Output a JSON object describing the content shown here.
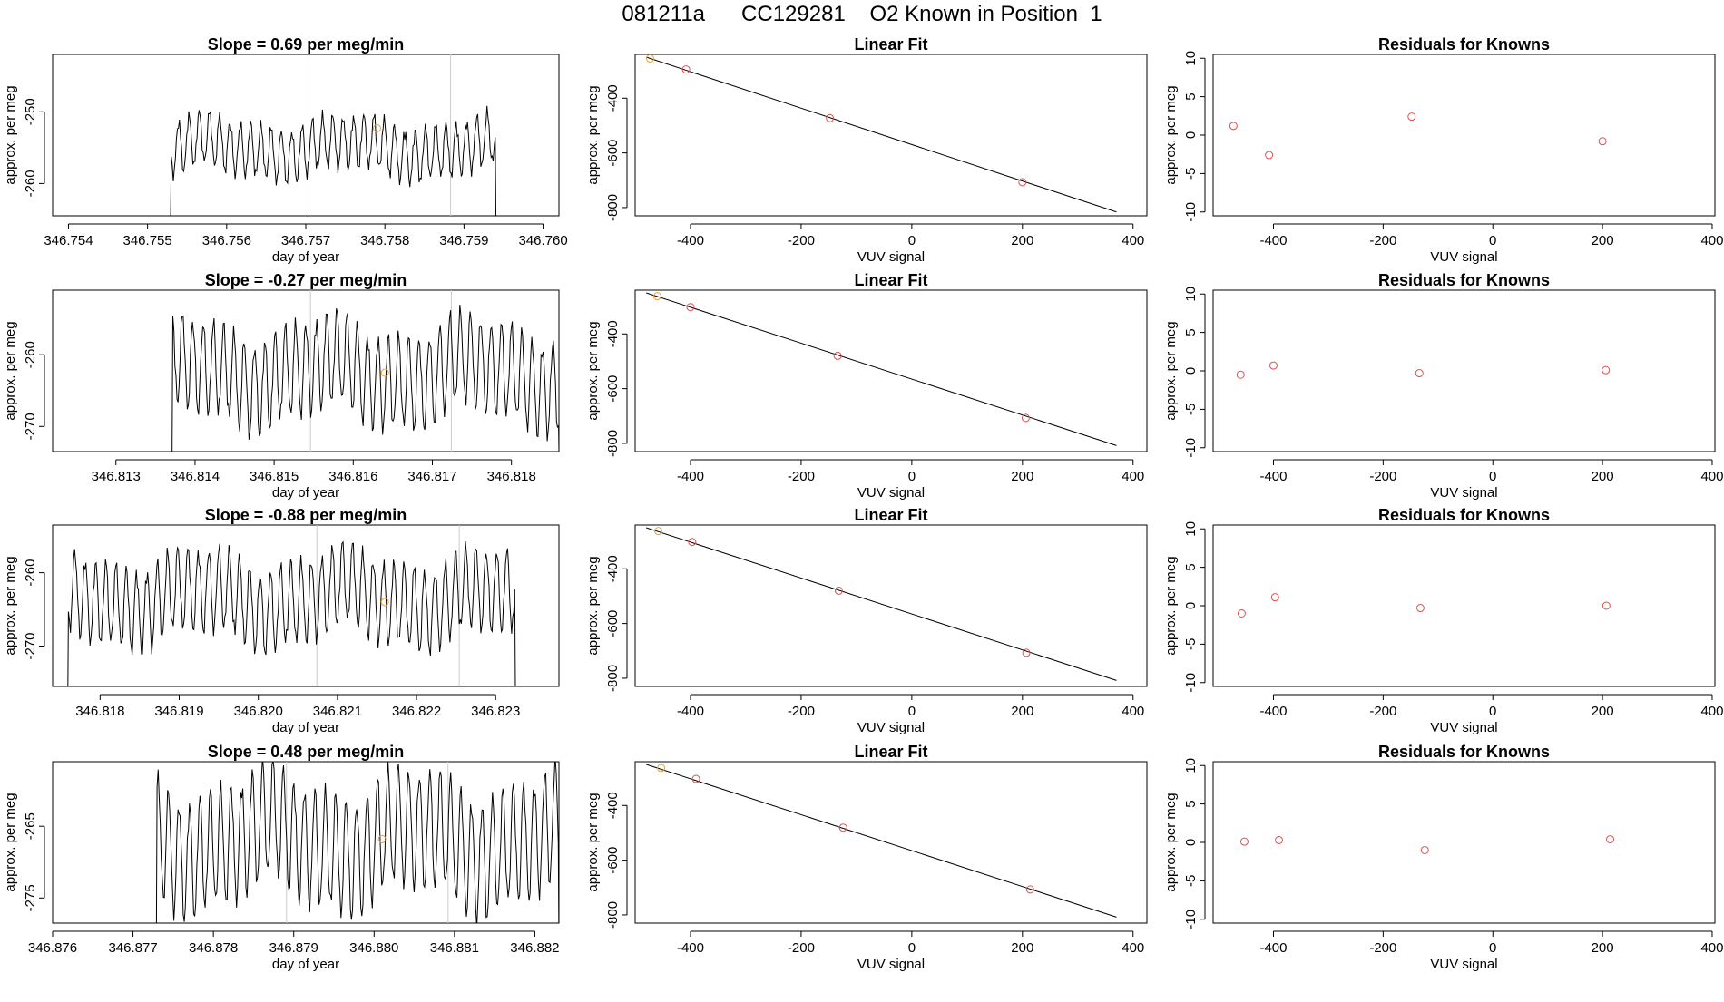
{
  "figure": {
    "title": "081211a      CC129281    O2 Known in Position  1"
  },
  "colors": {
    "ink": "#000000",
    "known_point": "#d9534f",
    "highlight_point": "#e8a33d",
    "vline": "#cccccc"
  },
  "chart_data": [
    {
      "type": "line",
      "panel": "time-series-1",
      "title": "Slope =  0.69  per meg/min",
      "xlabel": "day of year",
      "ylabel": "approx. per meg",
      "xlim": [
        346.7538,
        346.7602
      ],
      "ylim": [
        -264.5,
        -242
      ],
      "xticks": [
        "346.754",
        "346.755",
        "346.756",
        "346.757",
        "346.758",
        "346.759",
        "346.760"
      ],
      "yticks": [
        "-250",
        "-260"
      ],
      "vlines": [
        346.75704,
        346.75883
      ],
      "highlight": {
        "x": 346.7579,
        "y": -252.3
      },
      "signal": {
        "start": 346.7551,
        "end": 346.75956,
        "base": -255,
        "amp": 4.3,
        "period": 0.00013,
        "drop_in": 346.7553,
        "drop_out": 346.7594,
        "floor": -270
      }
    },
    {
      "type": "line",
      "panel": "time-series-2",
      "title": "Slope =  -0.27  per meg/min",
      "xlabel": "day of year",
      "ylabel": "approx. per meg",
      "xlim": [
        346.8122,
        346.8186
      ],
      "ylim": [
        -273.5,
        -251
      ],
      "xticks": [
        "346.813",
        "346.814",
        "346.815",
        "346.816",
        "346.817",
        "346.818"
      ],
      "yticks": [
        "-260",
        "-270"
      ],
      "vlines": [
        346.81546,
        346.81724
      ],
      "highlight": {
        "x": 346.8164,
        "y": -262.5
      },
      "signal": {
        "start": 346.81355,
        "end": 346.81842,
        "base": -262.5,
        "amp": 7.5,
        "period": 0.00013,
        "drop_in": 346.81372,
        "drop_out": 346.8186,
        "floor": -280
      }
    },
    {
      "type": "line",
      "panel": "time-series-3",
      "title": "Slope =  -0.88  per meg/min",
      "xlabel": "day of year",
      "ylabel": "approx. per meg",
      "xlim": [
        346.8174,
        346.8238
      ],
      "ylim": [
        -275.5,
        -253.5
      ],
      "xticks": [
        "346.818",
        "346.819",
        "346.820",
        "346.821",
        "346.822",
        "346.823"
      ],
      "yticks": [
        "-260",
        "-270"
      ],
      "vlines": [
        346.82074,
        346.82254
      ],
      "highlight": {
        "x": 346.8216,
        "y": -264
      },
      "signal": {
        "start": 346.81765,
        "end": 346.82333,
        "base": -263.5,
        "amp": 6.5,
        "period": 0.00013,
        "drop_in": 346.8176,
        "drop_out": 346.82325,
        "floor": -285
      }
    },
    {
      "type": "line",
      "panel": "time-series-4",
      "title": "Slope =  0.48  per meg/min",
      "xlabel": "day of year",
      "ylabel": "approx. per meg",
      "xlim": [
        346.876,
        346.8823
      ],
      "ylim": [
        -278.5,
        -256
      ],
      "xticks": [
        "346.876",
        "346.877",
        "346.878",
        "346.879",
        "346.880",
        "346.881",
        "346.882"
      ],
      "yticks": [
        "-265",
        "-275"
      ],
      "vlines": [
        346.87891,
        346.88092
      ],
      "highlight": {
        "x": 346.8801,
        "y": -266.8
      },
      "signal": {
        "start": 346.87715,
        "end": 346.88212,
        "base": -267,
        "amp": 9.5,
        "period": 0.00013,
        "drop_in": 346.8773,
        "drop_out": 346.8823,
        "floor": -290
      }
    },
    {
      "type": "scatter",
      "panel": "linear-fit-1",
      "title": "Linear Fit",
      "xlabel": "VUV signal",
      "ylabel": "approx. per meg",
      "xlim": [
        -500,
        425
      ],
      "ylim": [
        -830,
        -240
      ],
      "xticks": [
        "-400",
        "-200",
        "0",
        "200",
        "400"
      ],
      "yticks": [
        "-400",
        "-600",
        "-800"
      ],
      "points": [
        {
          "x": -473,
          "y": -255,
          "highlight": true
        },
        {
          "x": -408,
          "y": -295
        },
        {
          "x": -148,
          "y": -473
        },
        {
          "x": 200,
          "y": -707
        }
      ],
      "fit_line": [
        [
          -480,
          -250
        ],
        [
          370,
          -816
        ]
      ]
    },
    {
      "type": "scatter",
      "panel": "linear-fit-2",
      "title": "Linear Fit",
      "xlabel": "VUV signal",
      "ylabel": "approx. per meg",
      "xlim": [
        -500,
        425
      ],
      "ylim": [
        -830,
        -240
      ],
      "xticks": [
        "-400",
        "-200",
        "0",
        "200",
        "400"
      ],
      "yticks": [
        "-400",
        "-600",
        "-800"
      ],
      "points": [
        {
          "x": -460,
          "y": -262,
          "highlight": true
        },
        {
          "x": -400,
          "y": -302
        },
        {
          "x": -134,
          "y": -480
        },
        {
          "x": 206,
          "y": -707
        }
      ],
      "fit_line": [
        [
          -480,
          -250
        ],
        [
          370,
          -808
        ]
      ]
    },
    {
      "type": "scatter",
      "panel": "linear-fit-3",
      "title": "Linear Fit",
      "xlabel": "VUV signal",
      "ylabel": "approx. per meg",
      "xlim": [
        -500,
        425
      ],
      "ylim": [
        -830,
        -240
      ],
      "xticks": [
        "-400",
        "-200",
        "0",
        "200",
        "400"
      ],
      "yticks": [
        "-400",
        "-600",
        "-800"
      ],
      "points": [
        {
          "x": -458,
          "y": -262,
          "highlight": true
        },
        {
          "x": -397,
          "y": -302
        },
        {
          "x": -132,
          "y": -480
        },
        {
          "x": 207,
          "y": -707
        }
      ],
      "fit_line": [
        [
          -480,
          -250
        ],
        [
          370,
          -808
        ]
      ]
    },
    {
      "type": "scatter",
      "panel": "linear-fit-4",
      "title": "Linear Fit",
      "xlabel": "VUV signal",
      "ylabel": "approx. per meg",
      "xlim": [
        -500,
        425
      ],
      "ylim": [
        -830,
        -240
      ],
      "xticks": [
        "-400",
        "-200",
        "0",
        "200",
        "400"
      ],
      "yticks": [
        "-400",
        "-600",
        "-800"
      ],
      "points": [
        {
          "x": -453,
          "y": -263,
          "highlight": true
        },
        {
          "x": -390,
          "y": -303
        },
        {
          "x": -124,
          "y": -481
        },
        {
          "x": 214,
          "y": -707
        }
      ],
      "fit_line": [
        [
          -480,
          -250
        ],
        [
          370,
          -808
        ]
      ]
    },
    {
      "type": "scatter",
      "panel": "residuals-1",
      "title": "Residuals for Knowns",
      "xlabel": "VUV signal",
      "ylabel": "approx. per meg",
      "xlim": [
        -510,
        405
      ],
      "ylim": [
        -10.5,
        10.5
      ],
      "xticks": [
        "-400",
        "-200",
        "0",
        "200",
        "400"
      ],
      "yticks": [
        "10",
        "5",
        "0",
        "-5",
        "-10"
      ],
      "points": [
        {
          "x": -473,
          "y": 1.2
        },
        {
          "x": -408,
          "y": -2.6
        },
        {
          "x": -148,
          "y": 2.4
        },
        {
          "x": 200,
          "y": -0.8
        }
      ]
    },
    {
      "type": "scatter",
      "panel": "residuals-2",
      "title": "Residuals for Knowns",
      "xlabel": "VUV signal",
      "ylabel": "approx. per meg",
      "xlim": [
        -510,
        405
      ],
      "ylim": [
        -10.5,
        10.5
      ],
      "xticks": [
        "-400",
        "-200",
        "0",
        "200",
        "400"
      ],
      "yticks": [
        "10",
        "5",
        "0",
        "-5",
        "-10"
      ],
      "points": [
        {
          "x": -460,
          "y": -0.5
        },
        {
          "x": -400,
          "y": 0.7
        },
        {
          "x": -134,
          "y": -0.3
        },
        {
          "x": 206,
          "y": 0.1
        }
      ]
    },
    {
      "type": "scatter",
      "panel": "residuals-3",
      "title": "Residuals for Knowns",
      "xlabel": "VUV signal",
      "ylabel": "approx. per meg",
      "xlim": [
        -510,
        405
      ],
      "ylim": [
        -10.5,
        10.5
      ],
      "xticks": [
        "-400",
        "-200",
        "0",
        "200",
        "400"
      ],
      "yticks": [
        "10",
        "5",
        "0",
        "-5",
        "-10"
      ],
      "points": [
        {
          "x": -458,
          "y": -1.0
        },
        {
          "x": -397,
          "y": 1.1
        },
        {
          "x": -132,
          "y": -0.3
        },
        {
          "x": 207,
          "y": 0.0
        }
      ]
    },
    {
      "type": "scatter",
      "panel": "residuals-4",
      "title": "Residuals for Knowns",
      "xlabel": "VUV signal",
      "ylabel": "approx. per meg",
      "xlim": [
        -510,
        405
      ],
      "ylim": [
        -10.5,
        10.5
      ],
      "xticks": [
        "-400",
        "-200",
        "0",
        "200",
        "400"
      ],
      "yticks": [
        "10",
        "5",
        "0",
        "-5",
        "-10"
      ],
      "points": [
        {
          "x": -453,
          "y": 0.1
        },
        {
          "x": -390,
          "y": 0.3
        },
        {
          "x": -124,
          "y": -1.0
        },
        {
          "x": 214,
          "y": 0.4
        }
      ]
    }
  ]
}
